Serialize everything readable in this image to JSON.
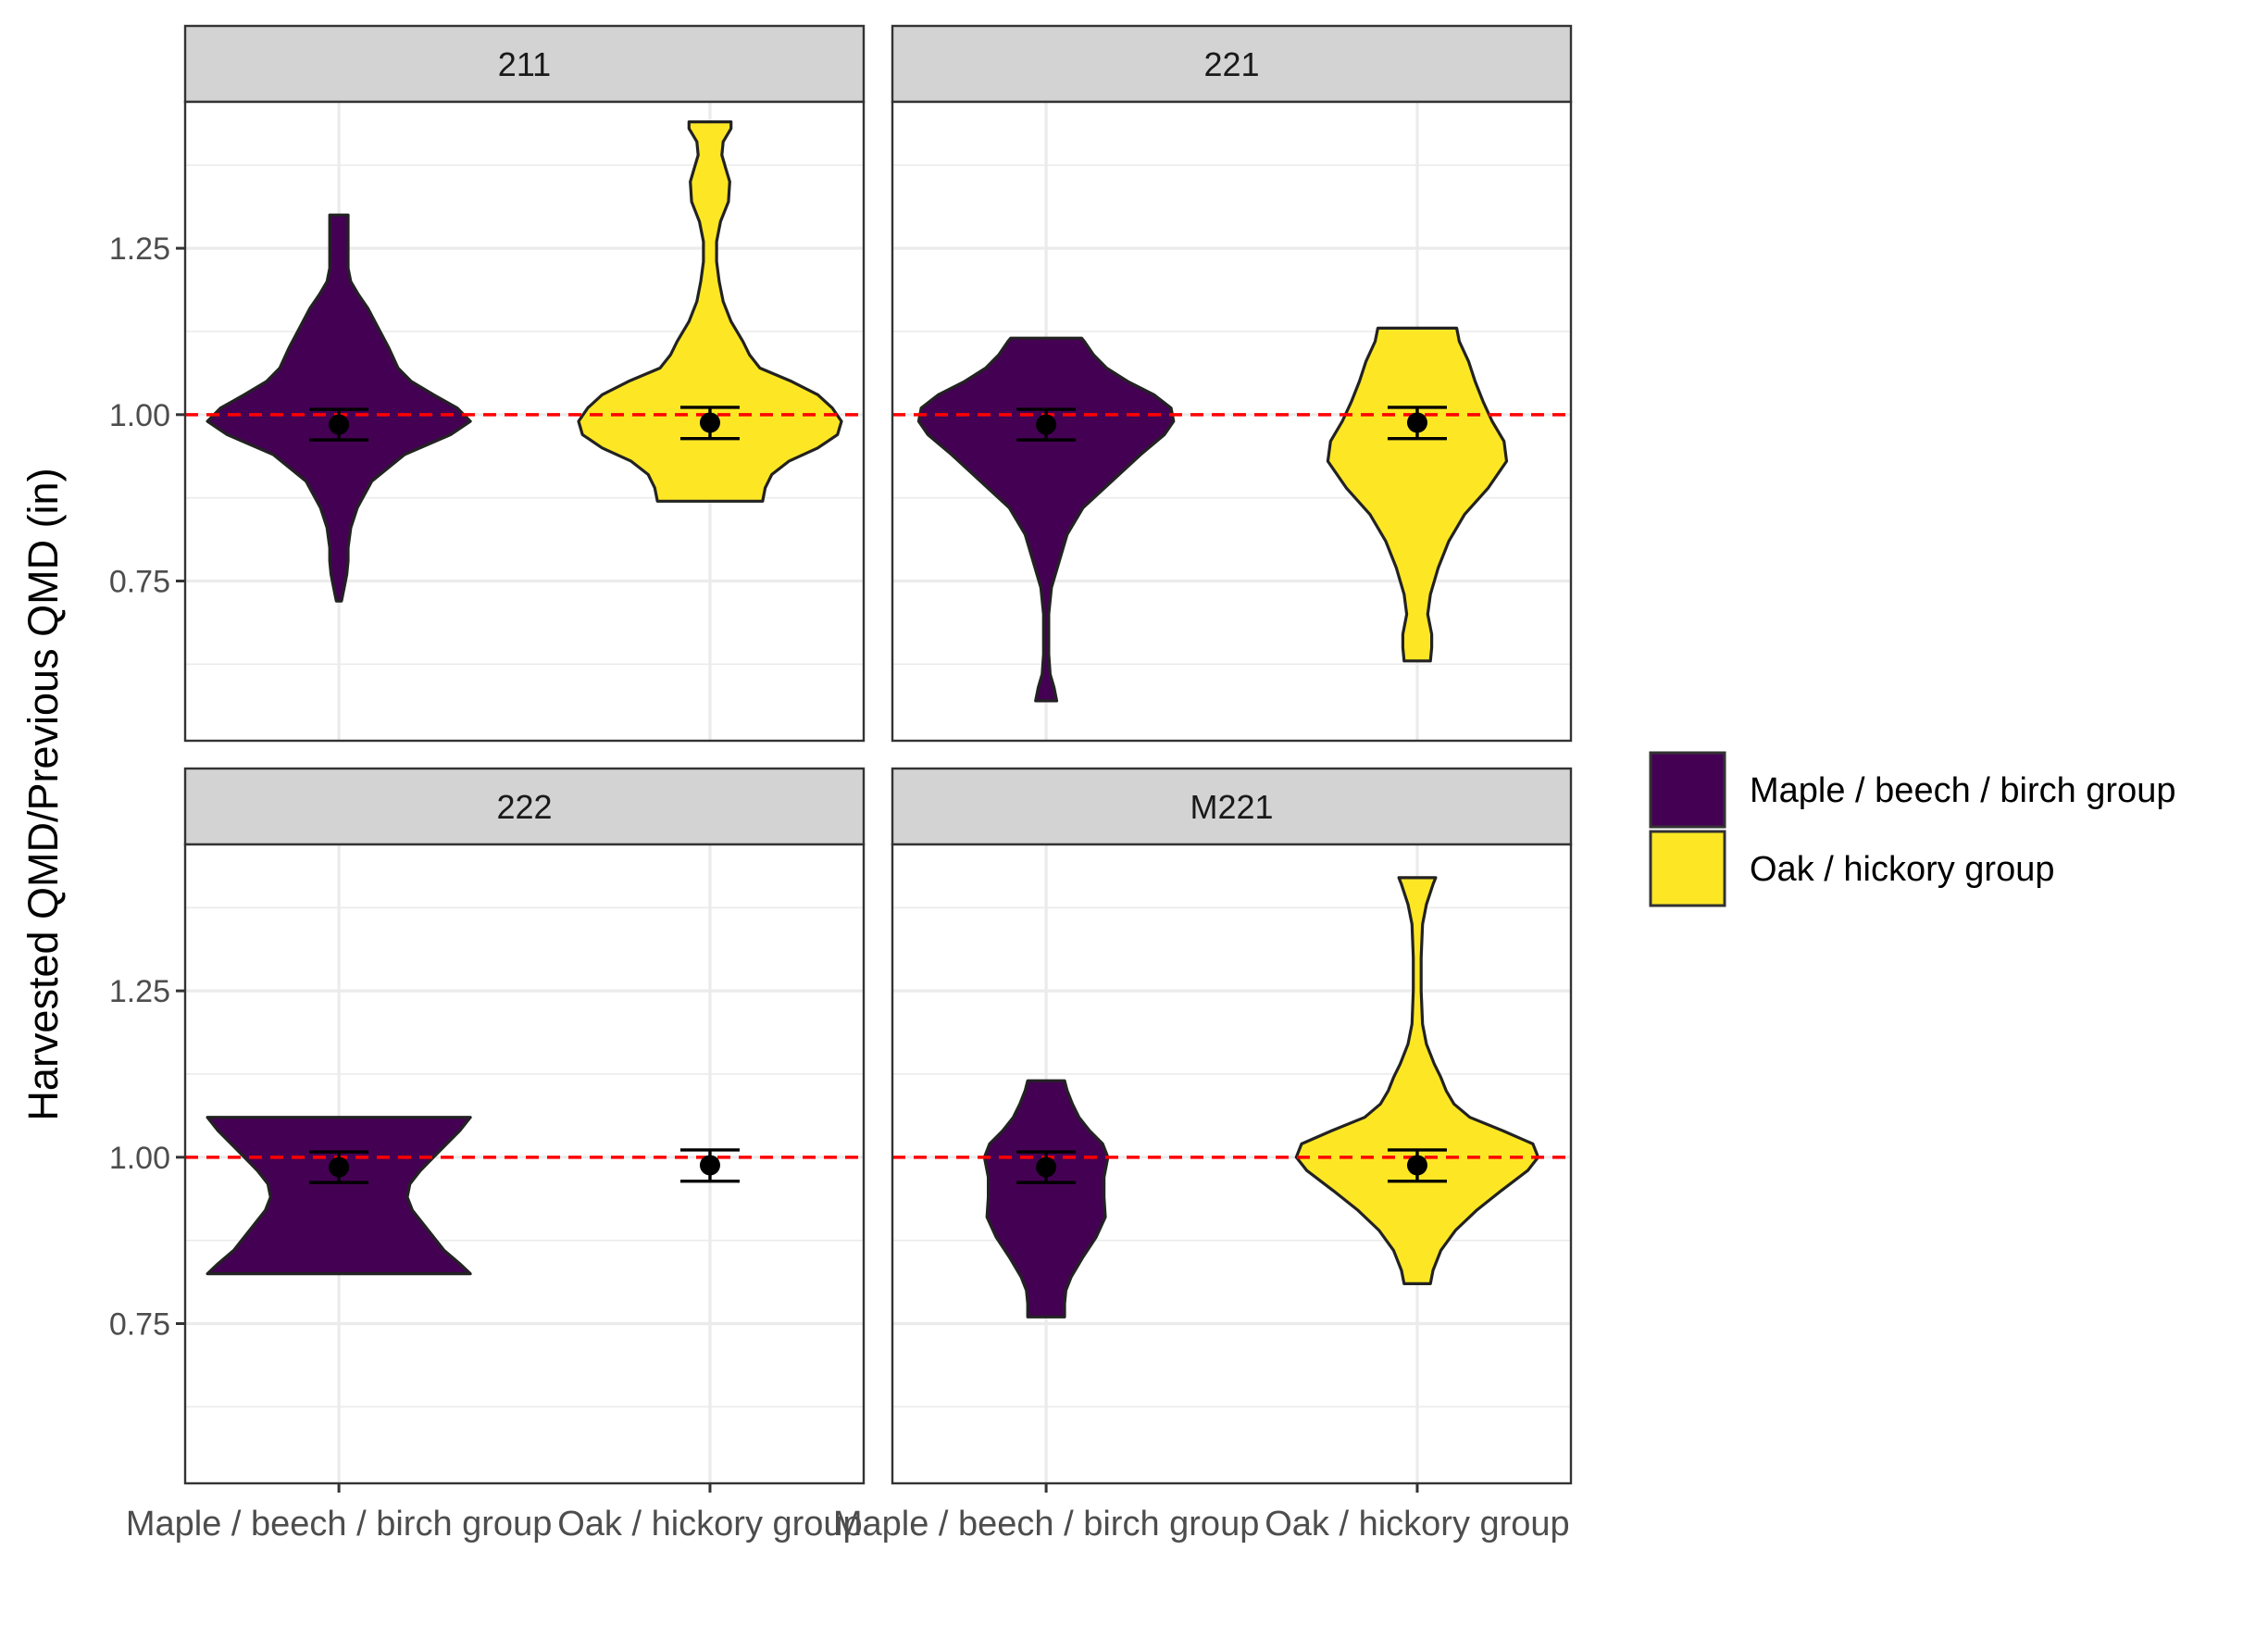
{
  "chart_data": {
    "type": "violin",
    "ylabel": "Harvested QMD/Previous QMD (in)",
    "xlabel": "",
    "ylim": [
      0.51,
      1.47
    ],
    "yticks": [
      0.75,
      1.0,
      1.25
    ],
    "ytick_labels": [
      "0.75",
      "1.00",
      "1.25"
    ],
    "categories": [
      "Maple / beech / birch group",
      "Oak / hickory group"
    ],
    "reference_line": {
      "y": 1.0,
      "color": "#ff0000",
      "style": "dashed"
    },
    "legend": {
      "placement": "right",
      "entries": [
        {
          "label": "Maple / beech / birch group",
          "color": "#440154"
        },
        {
          "label": "Oak / hickory group",
          "color": "#FDE725"
        }
      ]
    },
    "colors": {
      "maple": "#440154",
      "oak": "#FDE725",
      "strip": "#d3d3d3",
      "grid": "#ebebeb",
      "refline": "#ff0000"
    },
    "panels": [
      {
        "title": "211",
        "groups": [
          {
            "name": "Maple / beech / birch group",
            "mean": 0.985,
            "ci": [
              0.962,
              1.008
            ],
            "violin": [
              [
                0.72,
                0.02
              ],
              [
                0.74,
                0.04
              ],
              [
                0.76,
                0.06
              ],
              [
                0.78,
                0.07
              ],
              [
                0.8,
                0.07
              ],
              [
                0.83,
                0.09
              ],
              [
                0.86,
                0.14
              ],
              [
                0.9,
                0.25
              ],
              [
                0.94,
                0.5
              ],
              [
                0.97,
                0.85
              ],
              [
                0.99,
                1.0
              ],
              [
                1.01,
                0.9
              ],
              [
                1.03,
                0.72
              ],
              [
                1.05,
                0.55
              ],
              [
                1.07,
                0.45
              ],
              [
                1.1,
                0.38
              ],
              [
                1.13,
                0.3
              ],
              [
                1.16,
                0.22
              ],
              [
                1.18,
                0.15
              ],
              [
                1.2,
                0.09
              ],
              [
                1.22,
                0.07
              ],
              [
                1.26,
                0.07
              ],
              [
                1.3,
                0.07
              ]
            ]
          },
          {
            "name": "Oak / hickory group",
            "mean": 0.988,
            "ci": [
              0.964,
              1.011
            ],
            "violin": [
              [
                0.87,
                0.4
              ],
              [
                0.89,
                0.42
              ],
              [
                0.91,
                0.47
              ],
              [
                0.93,
                0.6
              ],
              [
                0.95,
                0.82
              ],
              [
                0.97,
                0.97
              ],
              [
                0.99,
                1.0
              ],
              [
                1.01,
                0.93
              ],
              [
                1.03,
                0.82
              ],
              [
                1.05,
                0.62
              ],
              [
                1.07,
                0.38
              ],
              [
                1.09,
                0.3
              ],
              [
                1.11,
                0.25
              ],
              [
                1.14,
                0.16
              ],
              [
                1.17,
                0.1
              ],
              [
                1.2,
                0.07
              ],
              [
                1.23,
                0.05
              ],
              [
                1.26,
                0.05
              ],
              [
                1.29,
                0.08
              ],
              [
                1.32,
                0.14
              ],
              [
                1.35,
                0.15
              ],
              [
                1.37,
                0.12
              ],
              [
                1.39,
                0.09
              ],
              [
                1.41,
                0.1
              ],
              [
                1.43,
                0.16
              ],
              [
                1.44,
                0.16
              ]
            ]
          }
        ]
      },
      {
        "title": "221",
        "groups": [
          {
            "name": "Maple / beech / birch group",
            "mean": 0.985,
            "ci": [
              0.962,
              1.008
            ],
            "violin": [
              [
                0.57,
                0.08
              ],
              [
                0.59,
                0.06
              ],
              [
                0.61,
                0.03
              ],
              [
                0.64,
                0.02
              ],
              [
                0.7,
                0.02
              ],
              [
                0.74,
                0.04
              ],
              [
                0.78,
                0.1
              ],
              [
                0.82,
                0.16
              ],
              [
                0.86,
                0.28
              ],
              [
                0.9,
                0.5
              ],
              [
                0.94,
                0.72
              ],
              [
                0.97,
                0.9
              ],
              [
                0.99,
                0.97
              ],
              [
                1.01,
                0.95
              ],
              [
                1.03,
                0.82
              ],
              [
                1.05,
                0.62
              ],
              [
                1.07,
                0.46
              ],
              [
                1.09,
                0.36
              ],
              [
                1.11,
                0.29
              ],
              [
                1.115,
                0.27
              ]
            ]
          },
          {
            "name": "Oak / hickory group",
            "mean": 0.988,
            "ci": [
              0.964,
              1.011
            ],
            "violin": [
              [
                0.63,
                0.1
              ],
              [
                0.65,
                0.11
              ],
              [
                0.67,
                0.11
              ],
              [
                0.7,
                0.08
              ],
              [
                0.73,
                0.1
              ],
              [
                0.77,
                0.16
              ],
              [
                0.81,
                0.24
              ],
              [
                0.85,
                0.36
              ],
              [
                0.89,
                0.54
              ],
              [
                0.93,
                0.68
              ],
              [
                0.96,
                0.66
              ],
              [
                0.99,
                0.57
              ],
              [
                1.02,
                0.5
              ],
              [
                1.05,
                0.44
              ],
              [
                1.08,
                0.39
              ],
              [
                1.11,
                0.32
              ],
              [
                1.13,
                0.3
              ]
            ]
          }
        ]
      },
      {
        "title": "222",
        "groups": [
          {
            "name": "Maple / beech / birch group",
            "mean": 0.985,
            "ci": [
              0.962,
              1.008
            ],
            "violin": [
              [
                0.825,
                1.0
              ],
              [
                0.84,
                0.92
              ],
              [
                0.86,
                0.8
              ],
              [
                0.89,
                0.68
              ],
              [
                0.92,
                0.56
              ],
              [
                0.94,
                0.52
              ],
              [
                0.96,
                0.54
              ],
              [
                0.98,
                0.62
              ],
              [
                1.0,
                0.72
              ],
              [
                1.02,
                0.82
              ],
              [
                1.04,
                0.92
              ],
              [
                1.06,
                1.0
              ]
            ]
          },
          {
            "name": "Oak / hickory group",
            "mean": 0.988,
            "ci": [
              0.964,
              1.011
            ],
            "violin": []
          }
        ]
      },
      {
        "title": "M221",
        "groups": [
          {
            "name": "Maple / beech / birch group",
            "mean": 0.985,
            "ci": [
              0.962,
              1.008
            ],
            "violin": [
              [
                0.76,
                0.14
              ],
              [
                0.78,
                0.14
              ],
              [
                0.8,
                0.15
              ],
              [
                0.82,
                0.19
              ],
              [
                0.85,
                0.28
              ],
              [
                0.88,
                0.38
              ],
              [
                0.91,
                0.45
              ],
              [
                0.94,
                0.44
              ],
              [
                0.97,
                0.44
              ],
              [
                1.0,
                0.47
              ],
              [
                1.02,
                0.43
              ],
              [
                1.04,
                0.33
              ],
              [
                1.06,
                0.25
              ],
              [
                1.08,
                0.2
              ],
              [
                1.1,
                0.16
              ],
              [
                1.115,
                0.14
              ]
            ]
          },
          {
            "name": "Oak / hickory group",
            "mean": 0.988,
            "ci": [
              0.964,
              1.011
            ],
            "violin": [
              [
                0.81,
                0.1
              ],
              [
                0.83,
                0.12
              ],
              [
                0.86,
                0.18
              ],
              [
                0.89,
                0.29
              ],
              [
                0.92,
                0.45
              ],
              [
                0.95,
                0.64
              ],
              [
                0.98,
                0.84
              ],
              [
                1.0,
                0.92
              ],
              [
                1.02,
                0.88
              ],
              [
                1.04,
                0.65
              ],
              [
                1.06,
                0.4
              ],
              [
                1.08,
                0.28
              ],
              [
                1.1,
                0.22
              ],
              [
                1.12,
                0.18
              ],
              [
                1.14,
                0.13
              ],
              [
                1.17,
                0.07
              ],
              [
                1.2,
                0.04
              ],
              [
                1.25,
                0.03
              ],
              [
                1.3,
                0.03
              ],
              [
                1.35,
                0.04
              ],
              [
                1.38,
                0.07
              ],
              [
                1.41,
                0.12
              ],
              [
                1.42,
                0.14
              ]
            ]
          }
        ]
      }
    ]
  }
}
